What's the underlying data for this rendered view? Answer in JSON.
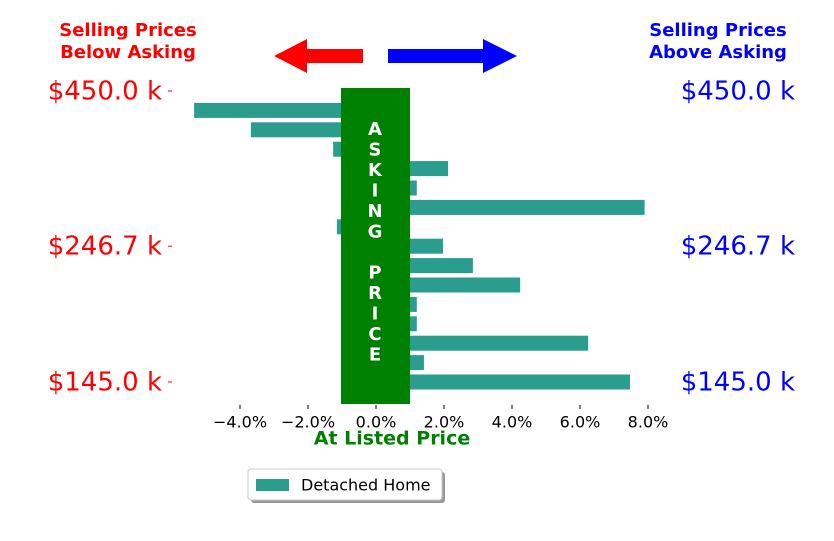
{
  "chart_data": {
    "type": "barh",
    "annotations": {
      "left": [
        "Selling Prices",
        "Below Asking"
      ],
      "right": [
        "Selling Prices",
        "Above Asking"
      ],
      "center": "ASKING PRICE",
      "bottom": "At Listed Price"
    },
    "categories": [
      "$450.0 k",
      null,
      null,
      null,
      null,
      null,
      null,
      null,
      "$246.7 k",
      null,
      null,
      null,
      null,
      null,
      null,
      "$145.0 k"
    ],
    "series": [
      {
        "name": "Detached Home",
        "color": "#2a9d8f",
        "values": [
          null,
          -5.35,
          -3.68,
          -1.26,
          2.12,
          1.2,
          7.9,
          -1.15,
          1.97,
          2.85,
          4.24,
          1.2,
          1.2,
          6.24,
          1.41,
          7.47
        ]
      }
    ],
    "xlim": [
      -5.5,
      8.5
    ],
    "xticks": [
      {
        "value": -4,
        "label": "−4.0%"
      },
      {
        "value": -2,
        "label": "−2.0%"
      },
      {
        "value": 0,
        "label": "0.0%"
      },
      {
        "value": 2,
        "label": "2.0%"
      },
      {
        "value": 4,
        "label": "4.0%"
      },
      {
        "value": 6,
        "label": "6.0%"
      },
      {
        "value": 8,
        "label": "8.0%"
      }
    ],
    "legend": "lower center"
  }
}
